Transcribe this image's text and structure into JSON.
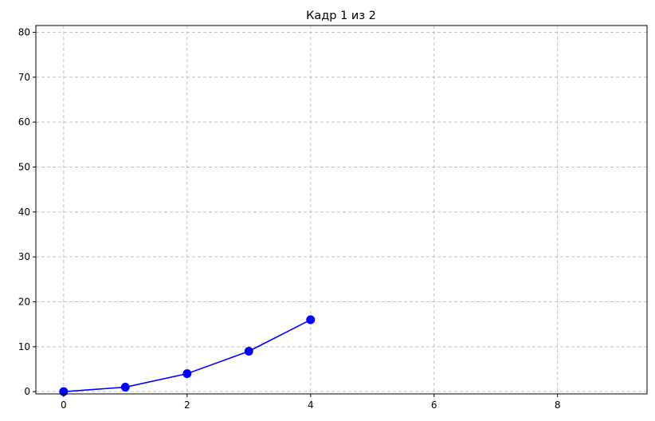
{
  "chart_data": {
    "type": "line",
    "title": "Кадр 1 из 2",
    "xlabel": "",
    "ylabel": "",
    "xlim": [
      -0.45,
      9.45
    ],
    "ylim": [
      -0.5,
      81.5
    ],
    "xticks": [
      0,
      2,
      4,
      6,
      8
    ],
    "yticks": [
      0,
      10,
      20,
      30,
      40,
      50,
      60,
      70,
      80
    ],
    "grid": true,
    "series": [
      {
        "color": "#0000ff",
        "marker": "circle",
        "x": [
          0,
          1,
          2,
          3,
          4
        ],
        "y": [
          0,
          1,
          4,
          9,
          16
        ]
      }
    ]
  }
}
